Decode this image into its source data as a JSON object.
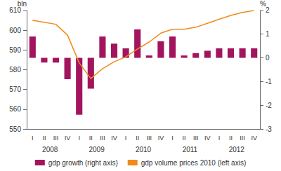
{
  "chart_data": {
    "type": "bar",
    "ylabel": "bln",
    "y2label": "%",
    "categories": [
      "I",
      "II",
      "III",
      "IV",
      "I",
      "II",
      "III",
      "IV",
      "I",
      "II",
      "III",
      "IV",
      "I",
      "II",
      "III",
      "IV",
      "I",
      "II",
      "III",
      "IV"
    ],
    "category_groups": [
      "2008",
      "2009",
      "2010",
      "2011",
      "2012"
    ],
    "series": [
      {
        "name": "gdp growth (right axis)",
        "type": "bar",
        "axis": "y2",
        "color": "#a3145f",
        "values": [
          0.9,
          -0.2,
          -0.2,
          -0.9,
          -2.4,
          -1.3,
          0.9,
          0.6,
          0.4,
          1.2,
          0.1,
          0.7,
          0.9,
          0.1,
          0.2,
          0.3,
          0.4,
          0.4,
          0.4,
          0.4
        ]
      },
      {
        "name": "gdp volume prices 2010 (left axis)",
        "type": "line",
        "axis": "y",
        "color": "#f08a1c",
        "values": [
          605,
          604,
          603,
          597.5,
          583.5,
          575.5,
          580.5,
          584,
          586.5,
          590.5,
          594,
          598.5,
          600.5,
          600.5,
          601.5,
          603.5,
          605.5,
          607.5,
          609,
          610
        ]
      }
    ],
    "ylim": [
      550,
      610
    ],
    "yticks": [
      550,
      560,
      570,
      580,
      590,
      600,
      610
    ],
    "y2lim": [
      -3,
      2
    ],
    "y2ticks": [
      -3,
      -2,
      -1,
      0,
      1,
      2
    ],
    "grid": false,
    "legend": "bottom"
  }
}
